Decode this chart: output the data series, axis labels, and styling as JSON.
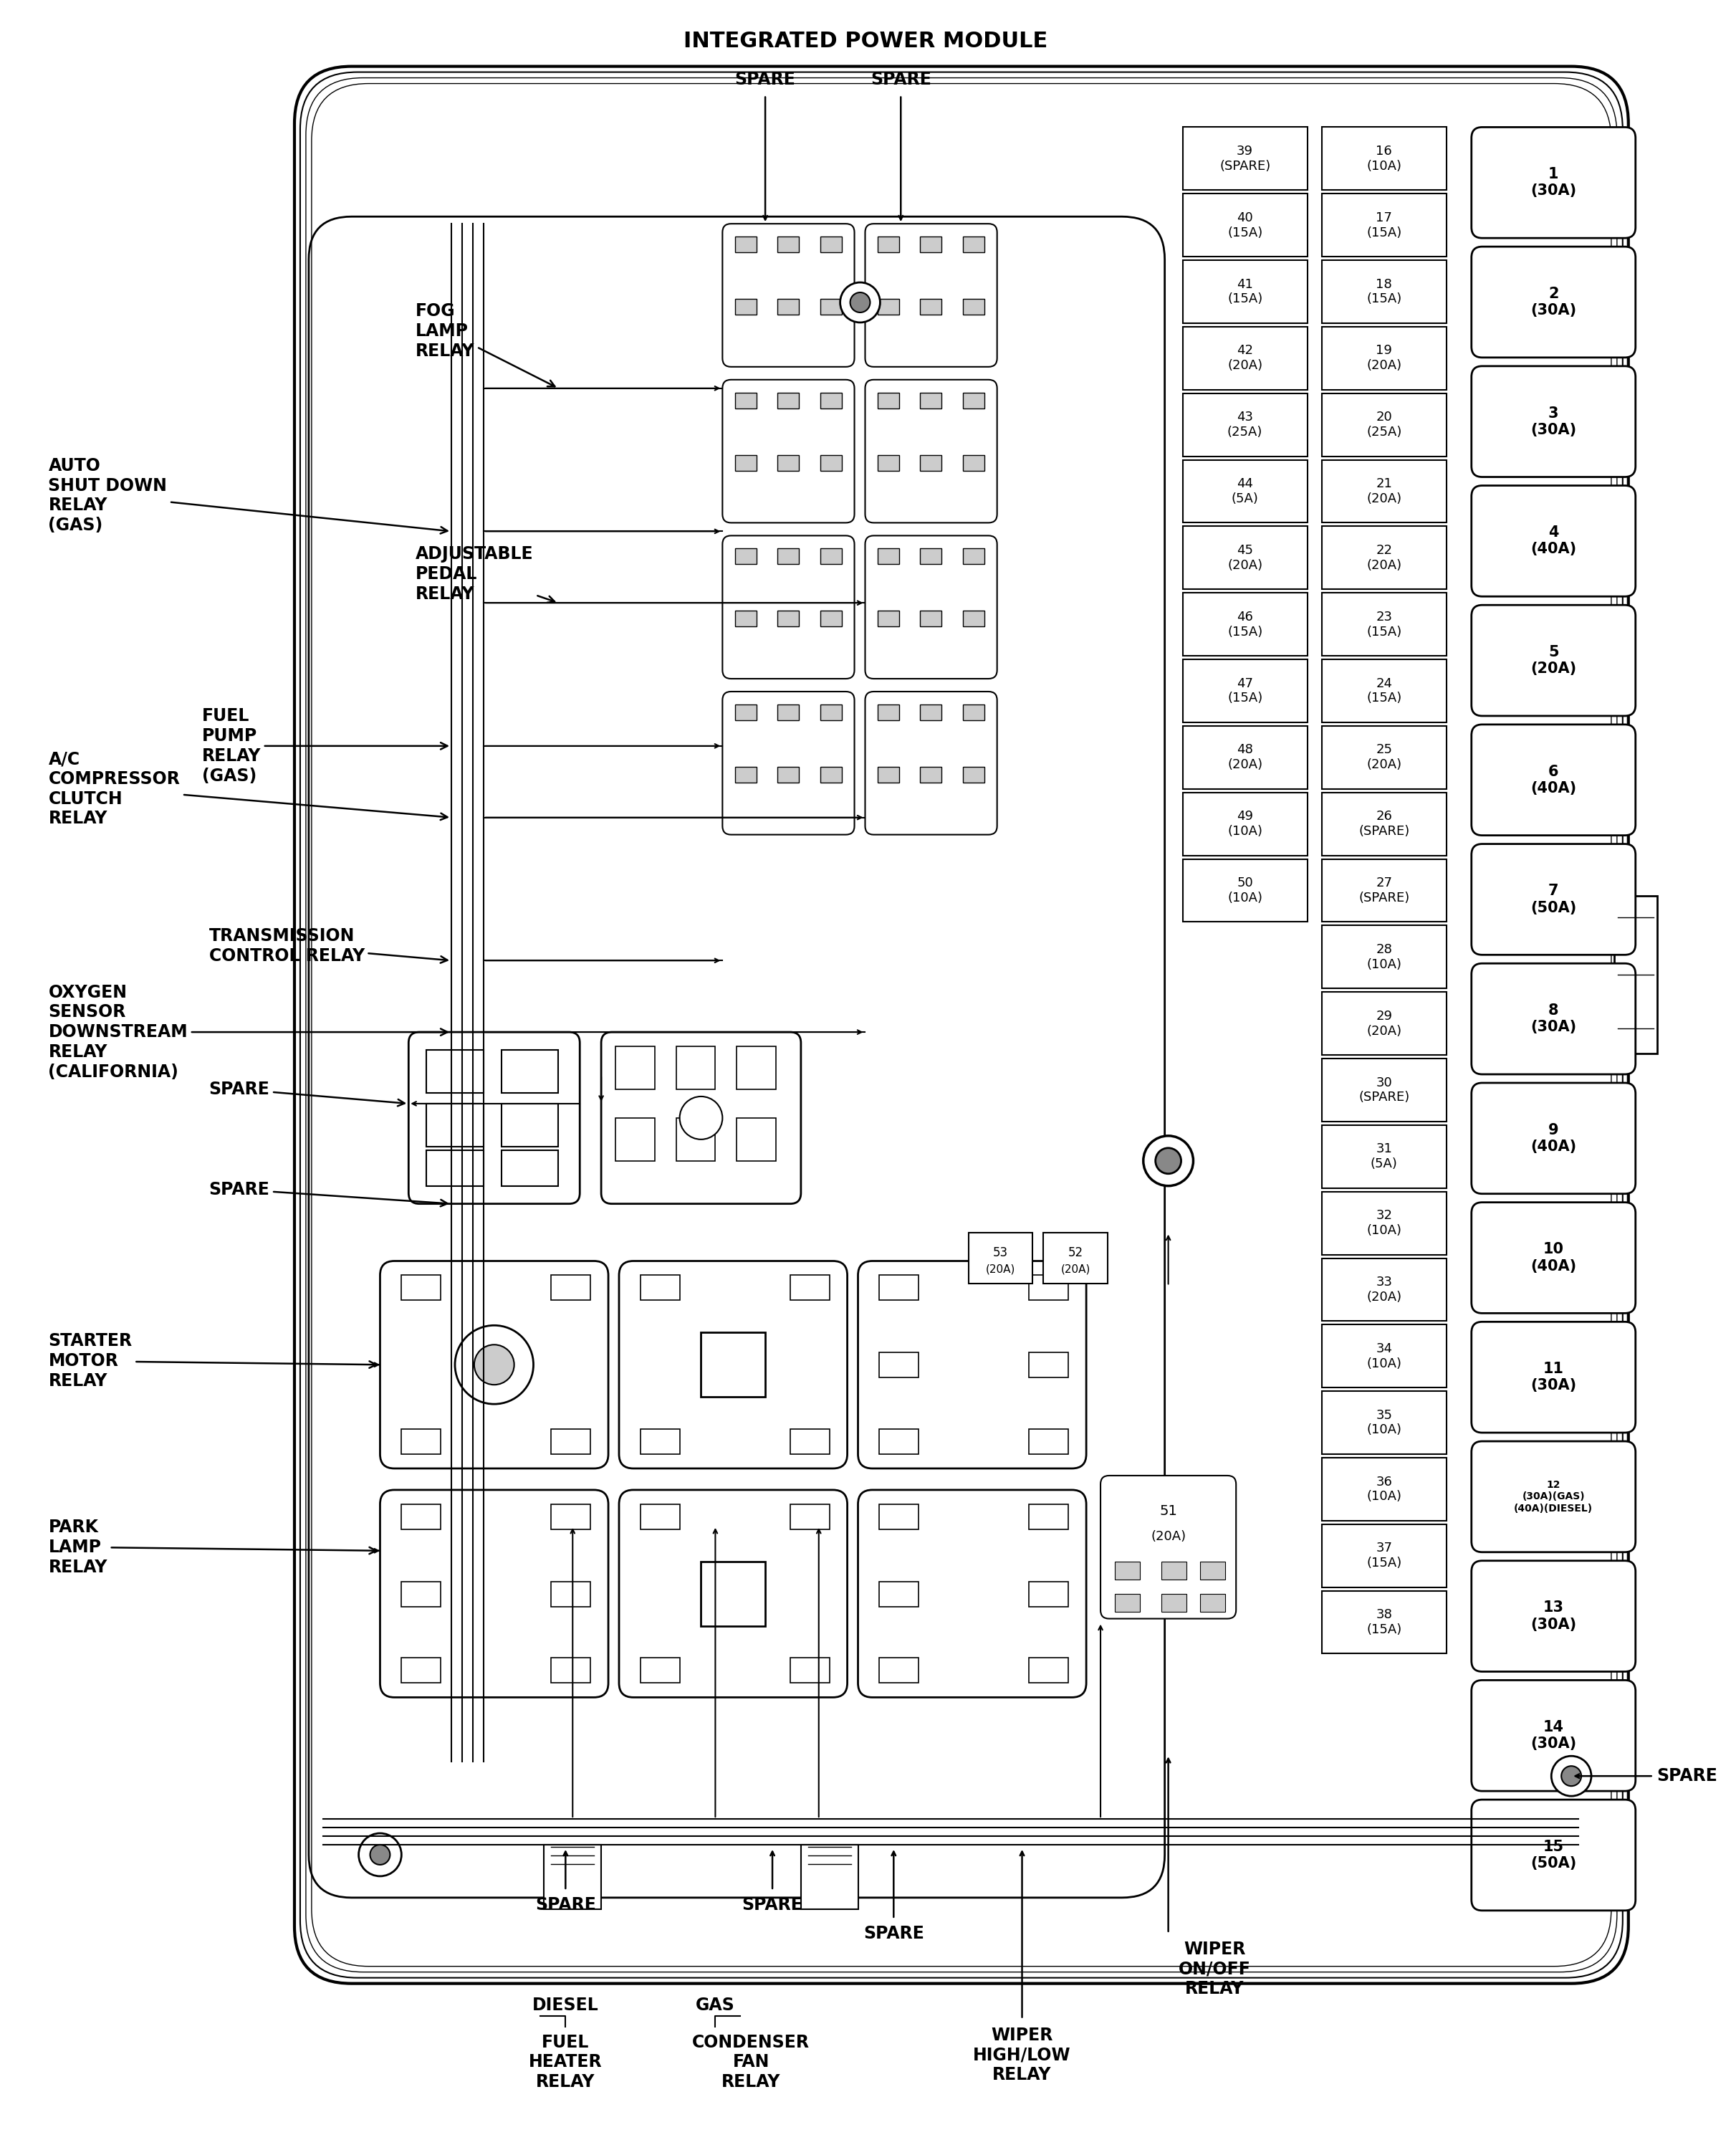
{
  "title": "INTEGRATED POWER MODULE",
  "bg": "#ffffff",
  "fuse_col_right": [
    {
      "num": "1",
      "amp": "(30A)"
    },
    {
      "num": "2",
      "amp": "(30A)"
    },
    {
      "num": "3",
      "amp": "(30A)"
    },
    {
      "num": "4",
      "amp": "(40A)"
    },
    {
      "num": "5",
      "amp": "(20A)"
    },
    {
      "num": "6",
      "amp": "(40A)"
    },
    {
      "num": "7",
      "amp": "(50A)"
    },
    {
      "num": "8",
      "amp": "(30A)"
    },
    {
      "num": "9",
      "amp": "(40A)"
    },
    {
      "num": "10",
      "amp": "(40A)"
    },
    {
      "num": "11",
      "amp": "(30A)"
    },
    {
      "num": "12",
      "amp": "(30A)(GAS)\n(40A)(DIESEL)"
    },
    {
      "num": "13",
      "amp": "(30A)"
    },
    {
      "num": "14",
      "amp": "(30A)"
    },
    {
      "num": "15",
      "amp": "(50A)"
    }
  ],
  "fuse_col_mid": [
    {
      "num": "16",
      "amp": "(10A)"
    },
    {
      "num": "17",
      "amp": "(15A)"
    },
    {
      "num": "18",
      "amp": "(15A)"
    },
    {
      "num": "19",
      "amp": "(20A)"
    },
    {
      "num": "20",
      "amp": "(25A)"
    },
    {
      "num": "21",
      "amp": "(20A)"
    },
    {
      "num": "22",
      "amp": "(20A)"
    },
    {
      "num": "23",
      "amp": "(15A)"
    },
    {
      "num": "24",
      "amp": "(15A)"
    },
    {
      "num": "25",
      "amp": "(20A)"
    },
    {
      "num": "26",
      "amp": "(SPARE)"
    },
    {
      "num": "27",
      "amp": "(SPARE)"
    },
    {
      "num": "28",
      "amp": "(10A)"
    },
    {
      "num": "29",
      "amp": "(20A)"
    },
    {
      "num": "30",
      "amp": "(SPARE)"
    },
    {
      "num": "31",
      "amp": "(5A)"
    },
    {
      "num": "32",
      "amp": "(10A)"
    },
    {
      "num": "33",
      "amp": "(20A)"
    },
    {
      "num": "34",
      "amp": "(10A)"
    },
    {
      "num": "35",
      "amp": "(10A)"
    },
    {
      "num": "36",
      "amp": "(10A)"
    },
    {
      "num": "37",
      "amp": "(15A)"
    },
    {
      "num": "38",
      "amp": "(15A)"
    }
  ],
  "fuse_col_left": [
    {
      "num": "39",
      "amp": "(SPARE)"
    },
    {
      "num": "40",
      "amp": "(15A)"
    },
    {
      "num": "41",
      "amp": "(15A)"
    },
    {
      "num": "42",
      "amp": "(20A)"
    },
    {
      "num": "43",
      "amp": "(25A)"
    },
    {
      "num": "44",
      "amp": "(5A)"
    },
    {
      "num": "45",
      "amp": "(20A)"
    },
    {
      "num": "46",
      "amp": "(15A)"
    },
    {
      "num": "47",
      "amp": "(15A)"
    },
    {
      "num": "48",
      "amp": "(20A)"
    },
    {
      "num": "49",
      "amp": "(10A)"
    },
    {
      "num": "50",
      "amp": "(10A)"
    }
  ]
}
